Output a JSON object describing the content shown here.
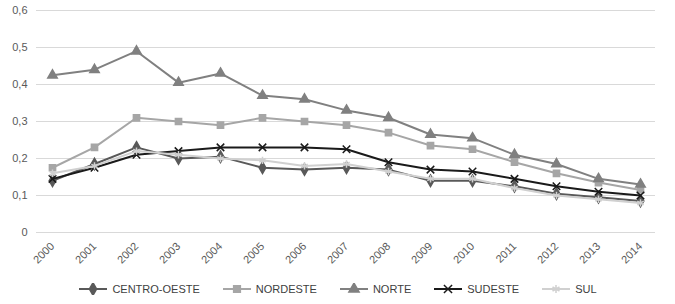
{
  "chart_data": {
    "type": "line",
    "categories": [
      "2000",
      "2001",
      "2002",
      "2003",
      "2004",
      "2005",
      "2006",
      "2007",
      "2008",
      "2009",
      "2010",
      "2011",
      "2012",
      "2013",
      "2014"
    ],
    "series": [
      {
        "name": "CENTRO-OESTE",
        "color": "#595959",
        "marker": "diamond",
        "values": [
          0.14,
          0.185,
          0.23,
          0.2,
          0.205,
          0.175,
          0.17,
          0.175,
          0.17,
          0.14,
          0.14,
          0.125,
          0.105,
          0.095,
          0.085
        ]
      },
      {
        "name": "NORDESTE",
        "color": "#a6a6a6",
        "marker": "square",
        "values": [
          0.175,
          0.23,
          0.31,
          0.3,
          0.29,
          0.31,
          0.3,
          0.29,
          0.27,
          0.235,
          0.225,
          0.19,
          0.16,
          0.135,
          0.115
        ]
      },
      {
        "name": "NORTE",
        "color": "#808080",
        "marker": "triangle",
        "values": [
          0.425,
          0.44,
          0.49,
          0.405,
          0.43,
          0.37,
          0.36,
          0.33,
          0.31,
          0.265,
          0.255,
          0.21,
          0.185,
          0.145,
          0.13
        ]
      },
      {
        "name": "SUDESTE",
        "color": "#1a1a1a",
        "marker": "times",
        "values": [
          0.145,
          0.175,
          0.21,
          0.22,
          0.23,
          0.23,
          0.23,
          0.225,
          0.19,
          0.17,
          0.165,
          0.145,
          0.125,
          0.11,
          0.1
        ]
      },
      {
        "name": "SUL",
        "color": "#d0d0d0",
        "marker": "asterisk",
        "values": [
          0.16,
          0.18,
          0.22,
          0.21,
          0.2,
          0.195,
          0.18,
          0.185,
          0.165,
          0.145,
          0.145,
          0.12,
          0.1,
          0.09,
          0.08
        ]
      }
    ],
    "ylim": [
      0,
      0.6
    ],
    "yticks": [
      0,
      {
        "value": 0.1,
        "label": "0,1"
      },
      {
        "value": 0.2,
        "label": "0,2"
      },
      {
        "value": 0.3,
        "label": "0,3"
      },
      {
        "value": 0.4,
        "label": "0,4"
      },
      {
        "value": 0.5,
        "label": "0,5"
      },
      {
        "value": 0.6,
        "label": "0,6"
      }
    ],
    "grid": true,
    "legend": "bottom"
  }
}
